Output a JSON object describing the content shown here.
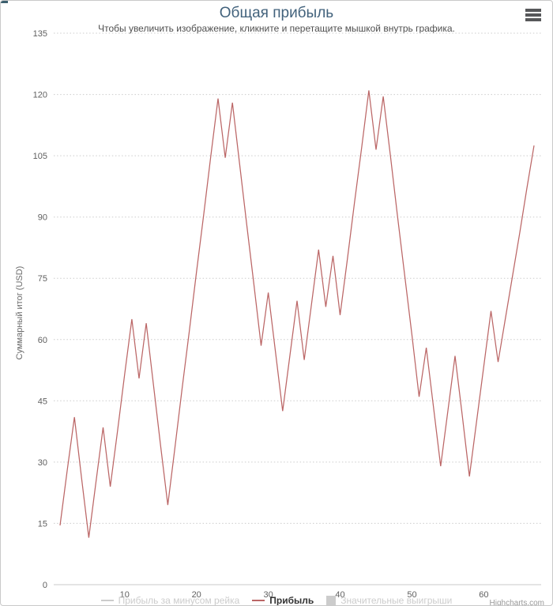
{
  "chart": {
    "menu_icon": "hamburger-icon",
    "accent_title_color": "#42627c",
    "grid_color": "#cccccc",
    "axis_text_color": "#5f5f5f"
  },
  "chart_data": {
    "type": "line",
    "title": "Общая прибыль",
    "subtitle": "Чтобы увеличить изображение, кликните и перетащите мышкой внутрь графика.",
    "ylabel": "Суммарный итог (USD)",
    "xlabel": "",
    "ylim": [
      0,
      135
    ],
    "xlim": [
      0,
      68
    ],
    "yticks": [
      0,
      15,
      30,
      45,
      60,
      75,
      90,
      105,
      120,
      135
    ],
    "xticks": [
      10,
      20,
      30,
      40,
      50,
      60
    ],
    "grid": "horizontal dotted",
    "legend_position": "bottom",
    "credits": "Highcharts.com",
    "series": [
      {
        "name": "Прибыль за минусом рейка",
        "visible": false,
        "swatch": "line",
        "color": "#cccccc",
        "values": []
      },
      {
        "name": "Прибыль",
        "visible": true,
        "swatch": "line",
        "color": "#bb6666",
        "x_start": 1,
        "values": [
          14.5,
          28,
          41,
          26,
          11.5,
          25,
          38.5,
          24,
          37.5,
          51.5,
          65,
          50.5,
          64,
          49,
          34,
          19.5,
          33.5,
          48,
          62,
          76.5,
          90.5,
          105,
          119,
          104.5,
          118,
          103,
          88,
          73.5,
          58.5,
          71.5,
          57,
          42.5,
          56,
          69.5,
          55,
          68.5,
          82,
          68,
          80.5,
          66,
          79.5,
          93.5,
          107,
          121,
          106.5,
          119.5,
          105,
          90,
          75.5,
          61,
          46,
          58,
          43.5,
          29,
          42.5,
          56,
          41.5,
          26.5,
          40,
          53.5,
          67,
          54.5,
          65,
          75.5,
          86,
          97,
          107.5
        ]
      },
      {
        "name": "Значительные выигрыши",
        "visible": false,
        "swatch": "square",
        "color": "#cccccc",
        "values": []
      }
    ]
  }
}
